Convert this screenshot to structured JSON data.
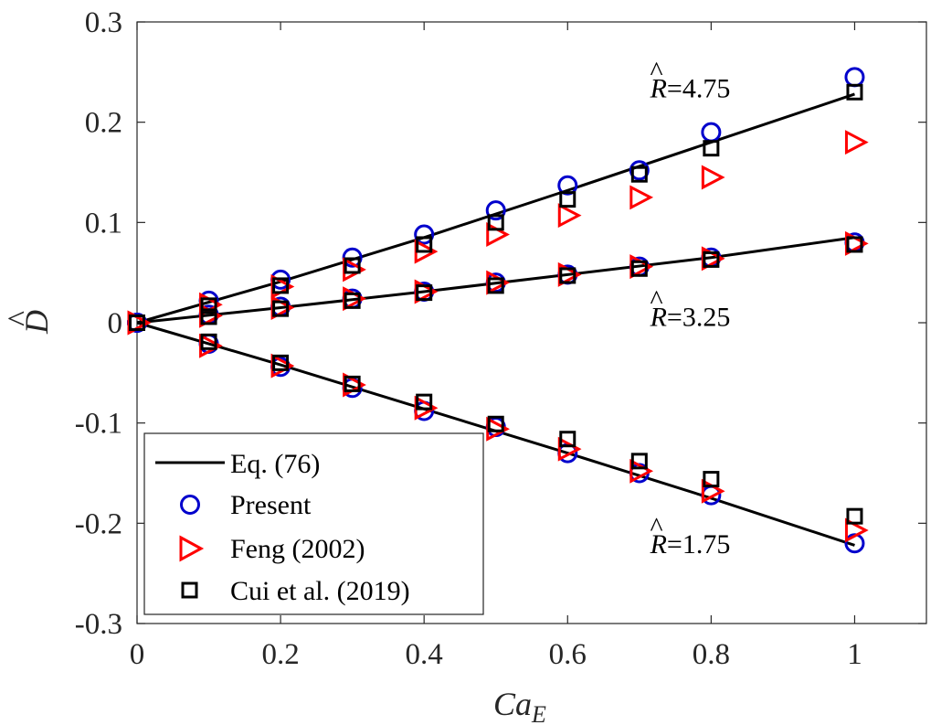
{
  "chart_data": {
    "type": "scatter",
    "title": "",
    "xlabel_base": "Ca",
    "xlabel_sub": "E",
    "ylabel_base": "D",
    "ylabel_hat": "^",
    "xlim": [
      0,
      1.1
    ],
    "ylim": [
      -0.3,
      0.3
    ],
    "x_ticks": [
      0,
      0.2,
      0.4,
      0.6,
      0.8,
      1
    ],
    "x_tick_labels": [
      "0",
      "0.2",
      "0.4",
      "0.6",
      "0.8",
      "1"
    ],
    "y_ticks": [
      -0.3,
      -0.2,
      -0.1,
      0,
      0.1,
      0.2,
      0.3
    ],
    "y_tick_labels": [
      "-0.3",
      "-0.2",
      "-0.1",
      "0",
      "0.1",
      "0.2",
      "0.3"
    ],
    "grid": false,
    "legend_position": "bottom-left",
    "x": [
      0,
      0.1,
      0.2,
      0.3,
      0.4,
      0.5,
      0.6,
      0.7,
      0.8,
      1.0
    ],
    "series": [
      {
        "name": "Eq. (76)",
        "marker": "line",
        "color": "#000000",
        "curves": [
          {
            "x": [
              0,
              0.2,
              0.4,
              0.6,
              0.8,
              1.0
            ],
            "y": [
              0,
              0.041,
              0.085,
              0.132,
              0.18,
              0.228
            ]
          },
          {
            "x": [
              0,
              0.2,
              0.4,
              0.6,
              0.8,
              1.0
            ],
            "y": [
              0,
              0.015,
              0.031,
              0.048,
              0.065,
              0.085
            ]
          },
          {
            "x": [
              0,
              0.2,
              0.4,
              0.6,
              0.8,
              1.0
            ],
            "y": [
              0,
              -0.042,
              -0.086,
              -0.13,
              -0.175,
              -0.222
            ]
          }
        ]
      },
      {
        "name": "Present",
        "marker": "circle",
        "color": "#0000CC",
        "groups": [
          [
            0,
            0.022,
            0.043,
            0.065,
            0.088,
            0.112,
            0.137,
            0.152,
            0.19,
            0.245
          ],
          [
            0,
            0.008,
            0.016,
            0.024,
            0.031,
            0.04,
            0.048,
            0.056,
            0.065,
            0.08
          ],
          [
            0,
            -0.021,
            -0.044,
            -0.065,
            -0.088,
            -0.104,
            -0.13,
            -0.15,
            -0.172,
            -0.22
          ]
        ]
      },
      {
        "name": "Feng (2002)",
        "marker": "triangle-right",
        "color": "#FF0000",
        "groups": [
          [
            0,
            0.018,
            0.036,
            0.053,
            0.071,
            0.088,
            0.107,
            0.125,
            0.145,
            0.18
          ],
          [
            0,
            0.007,
            0.015,
            0.024,
            0.031,
            0.04,
            0.048,
            0.056,
            0.064,
            0.079
          ],
          [
            0,
            -0.023,
            -0.043,
            -0.062,
            -0.085,
            -0.106,
            -0.126,
            -0.148,
            -0.168,
            -0.207
          ]
        ]
      },
      {
        "name": "Cui et al. (2019)",
        "marker": "square",
        "color": "#000000",
        "groups": [
          [
            0,
            0.017,
            0.037,
            0.057,
            0.078,
            0.1,
            0.123,
            0.148,
            0.174,
            0.23
          ],
          [
            0,
            0.006,
            0.014,
            0.022,
            0.03,
            0.037,
            0.047,
            0.054,
            0.063,
            0.078
          ],
          [
            0,
            -0.019,
            -0.04,
            -0.061,
            -0.079,
            -0.101,
            -0.116,
            -0.138,
            -0.156,
            -0.193
          ]
        ]
      }
    ],
    "annotations": [
      {
        "base": "R",
        "hat": "^",
        "text": "=4.75",
        "x": 0.715,
        "y": 0.225
      },
      {
        "base": "R",
        "hat": "^",
        "text": "=3.25",
        "x": 0.715,
        "y": -0.003
      },
      {
        "base": "R",
        "hat": "^",
        "text": "=1.75",
        "x": 0.715,
        "y": -0.23
      }
    ]
  }
}
